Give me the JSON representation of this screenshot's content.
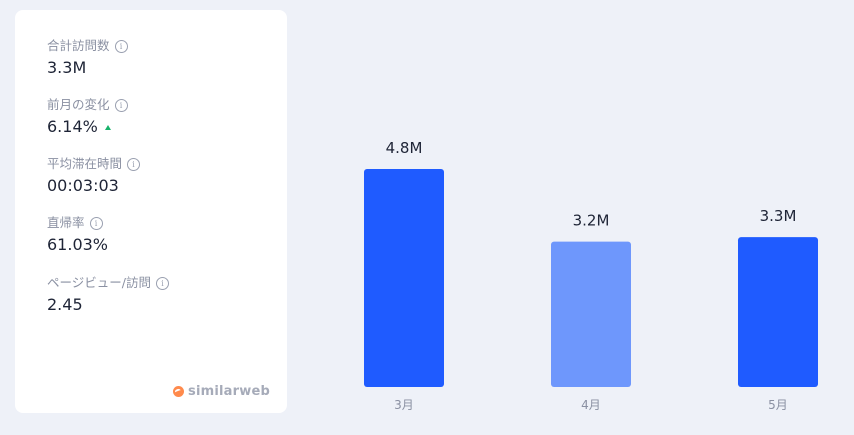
{
  "metrics": {
    "total_visits": {
      "label": "合計訪問数",
      "value": "3.3M"
    },
    "monthly_change": {
      "label": "前月の変化",
      "value": "6.14%"
    },
    "avg_duration": {
      "label": "平均滞在時間",
      "value": "00:03:03"
    },
    "bounce_rate": {
      "label": "直帰率",
      "value": "61.03%"
    },
    "pages_per_visit": {
      "label": "ページビュー/訪問",
      "value": "2.45"
    }
  },
  "info_icon_glyph": "i",
  "brand": {
    "name": "similarweb"
  },
  "chart_data": {
    "type": "bar",
    "categories": [
      "3月",
      "4月",
      "5月"
    ],
    "values": [
      4.8,
      3.2,
      3.3
    ],
    "value_labels": [
      "4.8M",
      "3.2M",
      "3.3M"
    ],
    "colors": [
      "#1f5bff",
      "#6e97fc",
      "#1f5bff"
    ],
    "ylim": [
      0,
      4.8
    ],
    "title": "",
    "xlabel": "",
    "ylabel": ""
  },
  "colors": {
    "background": "#eef1f8",
    "card": "#ffffff",
    "positive": "#17b26a",
    "bar_primary": "#1f5bff",
    "bar_secondary": "#6e97fc"
  }
}
